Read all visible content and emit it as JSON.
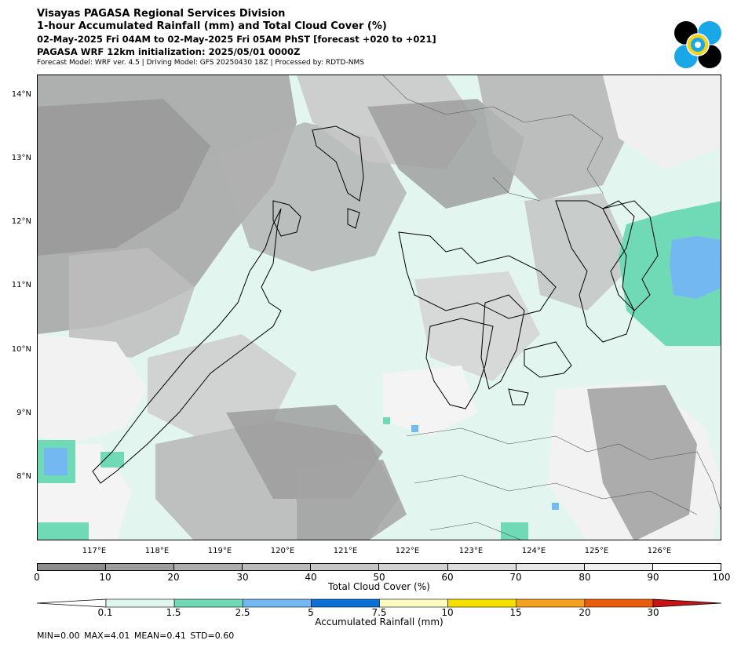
{
  "header": {
    "line1": "Visayas PAGASA Regional Services Division",
    "line2": "1-hour Accumulated Rainfall (mm) and Total Cloud Cover (%)",
    "line3": "02-May-2025 Fri 04AM to 02-May-2025 Fri 05AM PhST [forecast +020 to +021]",
    "line4": "PAGASA WRF 12km initialization: 2025/05/01 0000Z",
    "line5": "Forecast Model: WRF ver. 4.5 | Driving Model: GFS 20250430 18Z | Processed by: RDTD-NMS"
  },
  "map": {
    "lat_labels": [
      "14°N",
      "13°N",
      "12°N",
      "11°N",
      "10°N",
      "9°N",
      "8°N"
    ],
    "lon_labels": [
      "117°E",
      "118°E",
      "119°E",
      "120°E",
      "121°E",
      "122°E",
      "123°E",
      "124°E",
      "125°E",
      "126°E"
    ]
  },
  "cloud_colorbar": {
    "label": "Total Cloud Cover (%)",
    "ticks": [
      "0",
      "10",
      "20",
      "30",
      "40",
      "50",
      "60",
      "70",
      "80",
      "90",
      "100"
    ],
    "colors": [
      "#8c8c8c",
      "#9e9e9e",
      "#adadad",
      "#bababa",
      "#c6c6c6",
      "#d2d2d2",
      "#dcdcdc",
      "#e6e6e6",
      "#f0f0f0",
      "#ffffff"
    ]
  },
  "rain_colorbar": {
    "label": "Accumulated Rainfall (mm)",
    "ticks": [
      "0.1",
      "1.5",
      "2.5",
      "5",
      "7.5",
      "10",
      "15",
      "20",
      "30"
    ],
    "colors": [
      "#ffffff",
      "#dff5ee",
      "#70d9b5",
      "#74b8f2",
      "#0a6fd6",
      "#fdfcc0",
      "#f5e000",
      "#f4a020",
      "#e85c0a",
      "#c81414"
    ]
  },
  "stats": {
    "text": "MIN=0.00   MAX=4.01   MEAN=0.41   STD=0.60"
  }
}
